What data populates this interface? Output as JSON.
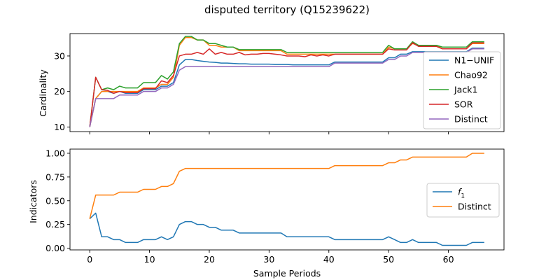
{
  "title": "disputed territory (Q15239622)",
  "chart_data": [
    {
      "type": "line",
      "ylabel": "Cardinality",
      "xlabel": "",
      "xlim": [
        -3.3,
        69.3
      ],
      "ylim": [
        8.7,
        36.3
      ],
      "xticks": [
        0,
        10,
        20,
        30,
        40,
        50,
        60
      ],
      "yticks": [
        10,
        20,
        30
      ],
      "legend_position": "center-right",
      "x": [
        0,
        1,
        2,
        3,
        4,
        5,
        6,
        7,
        8,
        9,
        10,
        11,
        12,
        13,
        14,
        15,
        16,
        17,
        18,
        19,
        20,
        21,
        22,
        23,
        24,
        25,
        26,
        27,
        28,
        29,
        30,
        31,
        32,
        33,
        34,
        35,
        36,
        37,
        38,
        39,
        40,
        41,
        42,
        43,
        44,
        45,
        46,
        47,
        48,
        49,
        50,
        51,
        52,
        53,
        54,
        55,
        56,
        57,
        58,
        59,
        60,
        61,
        62,
        63,
        64,
        65,
        66
      ],
      "series": [
        {
          "name": "N1−UNIF",
          "color": "#1f77b4",
          "values": [
            10,
            18,
            20,
            20,
            19.5,
            20,
            19.5,
            19.5,
            19.5,
            20.5,
            20.5,
            20.5,
            21.5,
            21.5,
            22.5,
            27.5,
            29,
            29,
            28.7,
            28.5,
            28.3,
            28.2,
            28,
            28,
            27.9,
            27.8,
            27.8,
            27.7,
            27.7,
            27.7,
            27.7,
            27.6,
            27.6,
            27.6,
            27.5,
            27.5,
            27.5,
            27.5,
            27.5,
            27.5,
            27.5,
            28.3,
            28.3,
            28.3,
            28.3,
            28.3,
            28.3,
            28.3,
            28.3,
            28.3,
            29.5,
            29.5,
            30.5,
            30.5,
            31.2,
            31.2,
            31.2,
            31.2,
            31.2,
            31.2,
            31.2,
            31.2,
            31.2,
            31.2,
            32.2,
            32.2,
            32.2
          ]
        },
        {
          "name": "Chao92",
          "color": "#ff7f0e",
          "values": [
            10,
            18,
            20,
            20,
            20,
            20,
            20,
            20,
            20,
            21,
            21,
            21,
            22,
            22,
            24,
            33,
            35.2,
            35.2,
            34.5,
            34.5,
            33,
            33,
            32.5,
            32.5,
            32.5,
            31.5,
            31.5,
            31.5,
            31.5,
            31.5,
            31.5,
            31.5,
            31.5,
            30.5,
            30.5,
            30.5,
            30.5,
            30.5,
            30.5,
            30.5,
            30.5,
            30.5,
            30.5,
            30.5,
            30.5,
            30.5,
            30.5,
            30.5,
            30.5,
            30.5,
            32.5,
            32,
            32,
            32,
            33.5,
            33,
            33,
            33,
            33,
            32,
            32,
            32,
            32,
            32,
            33.5,
            33.5,
            33.5
          ]
        },
        {
          "name": "Jack1",
          "color": "#2ca02c",
          "values": [
            10,
            24,
            20.5,
            21,
            20.5,
            21.5,
            21,
            21,
            21,
            22.5,
            22.5,
            22.5,
            24.5,
            23.5,
            25.5,
            33.5,
            35.5,
            35.5,
            34.5,
            34.5,
            33.5,
            33.5,
            33,
            32.5,
            32.5,
            31.8,
            31.8,
            31.8,
            31.8,
            31.8,
            31.8,
            31.8,
            31.8,
            31,
            31,
            31,
            31,
            31,
            31,
            31,
            31,
            31,
            31,
            31,
            31,
            31,
            31,
            31,
            31,
            31,
            33,
            32,
            32,
            32,
            34,
            33,
            33,
            33,
            33,
            32.5,
            32.5,
            32.5,
            32.5,
            32.5,
            34,
            34,
            34
          ]
        },
        {
          "name": "SOR",
          "color": "#d62728",
          "values": [
            10,
            24,
            20.5,
            20.3,
            19.5,
            20,
            19.7,
            19.7,
            19.7,
            20.8,
            20.8,
            20.8,
            23,
            22.5,
            24.5,
            30,
            30.5,
            30.5,
            31,
            30.5,
            32,
            30.5,
            31,
            30.5,
            30.5,
            31,
            30.3,
            30.5,
            30.5,
            30.7,
            30.7,
            30.5,
            30.3,
            30,
            30,
            30,
            29.8,
            30.3,
            30,
            30.3,
            30,
            30.5,
            30.5,
            30.5,
            30.5,
            30.5,
            30.5,
            30.5,
            30.5,
            30.5,
            32,
            31.7,
            31.7,
            31.7,
            33.7,
            32.7,
            32.7,
            32.7,
            32.7,
            32,
            32,
            32,
            32,
            32,
            33.7,
            33.7,
            33.7
          ]
        },
        {
          "name": "Distinct",
          "color": "#9467bd",
          "values": [
            10,
            18,
            18,
            18,
            18,
            19,
            19,
            19,
            19,
            20,
            20,
            20,
            21,
            21,
            22,
            26,
            27,
            27,
            27,
            27,
            27,
            27,
            27,
            27,
            27,
            27,
            27,
            27,
            27,
            27,
            27,
            27,
            27,
            27,
            27,
            27,
            27,
            27,
            27,
            27,
            27,
            28,
            28,
            28,
            28,
            28,
            28,
            28,
            28,
            28,
            29,
            29,
            30,
            30,
            31,
            31,
            31,
            31,
            31,
            31,
            31,
            31,
            31,
            31,
            32,
            32,
            32
          ]
        }
      ]
    },
    {
      "type": "line",
      "ylabel": "Indicators",
      "xlabel": "Sample Periods",
      "xlim": [
        -3.3,
        69.3
      ],
      "ylim": [
        -0.018,
        1.044
      ],
      "xticks": [
        0,
        10,
        20,
        30,
        40,
        50,
        60
      ],
      "yticks": [
        "0.00",
        "0.25",
        "0.50",
        "0.75",
        "1.00"
      ],
      "legend_position": "center-right",
      "x": [
        0,
        1,
        2,
        3,
        4,
        5,
        6,
        7,
        8,
        9,
        10,
        11,
        12,
        13,
        14,
        15,
        16,
        17,
        18,
        19,
        20,
        21,
        22,
        23,
        24,
        25,
        26,
        27,
        28,
        29,
        30,
        31,
        32,
        33,
        34,
        35,
        36,
        37,
        38,
        39,
        40,
        41,
        42,
        43,
        44,
        45,
        46,
        47,
        48,
        49,
        50,
        51,
        52,
        53,
        54,
        55,
        56,
        57,
        58,
        59,
        60,
        61,
        62,
        63,
        64,
        65,
        66
      ],
      "series": [
        {
          "name": "f1",
          "label_base": "f",
          "label_sub": "1",
          "color": "#1f77b4",
          "values": [
            0.31,
            0.37,
            0.12,
            0.12,
            0.09,
            0.09,
            0.06,
            0.06,
            0.06,
            0.09,
            0.09,
            0.09,
            0.12,
            0.09,
            0.12,
            0.25,
            0.28,
            0.28,
            0.25,
            0.25,
            0.22,
            0.22,
            0.19,
            0.19,
            0.19,
            0.16,
            0.16,
            0.16,
            0.16,
            0.16,
            0.16,
            0.16,
            0.16,
            0.12,
            0.12,
            0.12,
            0.12,
            0.12,
            0.12,
            0.12,
            0.12,
            0.09,
            0.09,
            0.09,
            0.09,
            0.09,
            0.09,
            0.09,
            0.09,
            0.09,
            0.12,
            0.09,
            0.06,
            0.06,
            0.09,
            0.06,
            0.06,
            0.06,
            0.06,
            0.03,
            0.03,
            0.03,
            0.03,
            0.03,
            0.06,
            0.06,
            0.06
          ]
        },
        {
          "name": "Distinct",
          "color": "#ff7f0e",
          "values": [
            0.31,
            0.56,
            0.56,
            0.56,
            0.56,
            0.59,
            0.59,
            0.59,
            0.59,
            0.62,
            0.62,
            0.62,
            0.65,
            0.65,
            0.68,
            0.81,
            0.84,
            0.84,
            0.84,
            0.84,
            0.84,
            0.84,
            0.84,
            0.84,
            0.84,
            0.84,
            0.84,
            0.84,
            0.84,
            0.84,
            0.84,
            0.84,
            0.84,
            0.84,
            0.84,
            0.84,
            0.84,
            0.84,
            0.84,
            0.84,
            0.84,
            0.87,
            0.87,
            0.87,
            0.87,
            0.87,
            0.87,
            0.87,
            0.87,
            0.87,
            0.9,
            0.9,
            0.93,
            0.93,
            0.96,
            0.96,
            0.96,
            0.96,
            0.96,
            0.96,
            0.96,
            0.96,
            0.96,
            0.96,
            1.0,
            1.0,
            1.0
          ]
        }
      ]
    }
  ]
}
